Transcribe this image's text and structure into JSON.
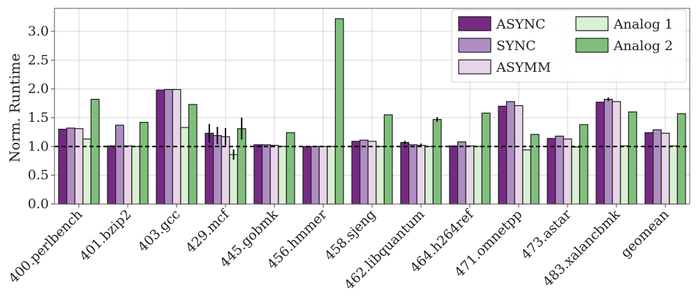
{
  "chart_data": {
    "type": "bar",
    "title": "",
    "xlabel": "",
    "ylabel": "Norm. Runtime",
    "ylim": [
      0,
      3.4
    ],
    "yticks": [
      "0.0",
      "0.5",
      "1.0",
      "1.5",
      "2.0",
      "2.5",
      "3.0"
    ],
    "reference_line": 1.0,
    "grid": true,
    "legend_position": "top-right",
    "categories": [
      "400.perlbench",
      "401.bzip2",
      "403.gcc",
      "429.mcf",
      "445.gobmk",
      "456.hmmer",
      "458.sjeng",
      "462.libquantum",
      "464.h264ref",
      "471.omnetpp",
      "473.astar",
      "483.xalancbmk",
      "geomean"
    ],
    "series": [
      {
        "name": "ASYNC",
        "color": "#762a83",
        "values": [
          1.3,
          1.01,
          1.98,
          1.23,
          1.03,
          1.0,
          1.09,
          1.07,
          1.01,
          1.7,
          1.14,
          1.77,
          1.24
        ],
        "errors": [
          0,
          0,
          0,
          0.16,
          0,
          0,
          0,
          0.03,
          0,
          0,
          0,
          0,
          0
        ]
      },
      {
        "name": "SYNC",
        "color": "#af8dc3",
        "values": [
          1.32,
          1.37,
          1.99,
          1.19,
          1.03,
          1.0,
          1.11,
          1.03,
          1.08,
          1.78,
          1.18,
          1.82,
          1.29
        ],
        "errors": [
          0,
          0,
          0,
          0.15,
          0,
          0,
          0,
          0,
          0,
          0,
          0,
          0.03,
          0
        ]
      },
      {
        "name": "ASYMM",
        "color": "#e7d4e8",
        "values": [
          1.31,
          1.01,
          1.99,
          1.17,
          1.02,
          1.0,
          1.09,
          1.02,
          1.01,
          1.71,
          1.13,
          1.78,
          1.23
        ],
        "errors": [
          0,
          0,
          0,
          0.15,
          0,
          0,
          0,
          0.03,
          0,
          0,
          0,
          0,
          0
        ]
      },
      {
        "name": "Analog 1",
        "color": "#d9f0d3",
        "values": [
          1.13,
          1.0,
          1.33,
          0.86,
          1.0,
          1.0,
          1.0,
          1.0,
          1.0,
          0.94,
          0.99,
          1.01,
          1.01
        ],
        "errors": [
          0,
          0,
          0,
          0.09,
          0,
          0,
          0,
          0,
          0,
          0,
          0,
          0,
          0
        ]
      },
      {
        "name": "Analog 2",
        "color": "#7fbf7b",
        "values": [
          1.82,
          1.42,
          1.73,
          1.31,
          1.24,
          3.22,
          1.55,
          1.47,
          1.58,
          1.21,
          1.38,
          1.6,
          1.57
        ],
        "errors": [
          0,
          0,
          0,
          0.19,
          0,
          0,
          0,
          0.04,
          0,
          0,
          0,
          0,
          0
        ]
      }
    ]
  }
}
